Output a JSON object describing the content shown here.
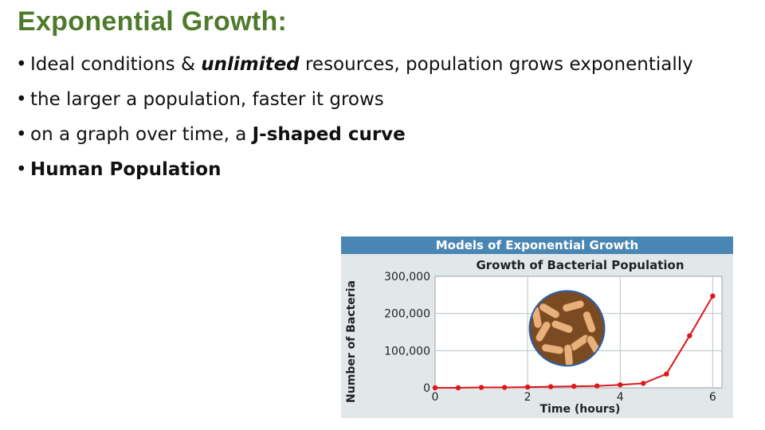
{
  "slide": {
    "title": "Exponential Growth:",
    "bullets": [
      {
        "parts": [
          {
            "text": "Ideal conditions & ",
            "style": "normal"
          },
          {
            "text": "unlimited",
            "style": "em"
          },
          {
            "text": " resources, population grows exponentially",
            "style": "normal"
          }
        ]
      },
      {
        "parts": [
          {
            "text": "the larger a population, faster it grows",
            "style": "normal"
          }
        ]
      },
      {
        "parts": [
          {
            "text": "on a graph over time, a ",
            "style": "normal"
          },
          {
            "text": "J-shaped curve",
            "style": "strong"
          }
        ]
      },
      {
        "parts": [
          {
            "text": "Human Population",
            "style": "strong"
          }
        ]
      }
    ]
  },
  "figure": {
    "header": "Models of Exponential Growth"
  },
  "colors": {
    "title": "#4f7a2c",
    "header_bg": "#4a86b4",
    "curve": "#e0161b",
    "plot_bg": "#ffffff",
    "grid": "#b9c3c6"
  },
  "chart_data": {
    "type": "line",
    "title": "Growth of Bacterial Population",
    "xlabel": "Time (hours)",
    "ylabel": "Number of Bacteria",
    "x_ticks": [
      0,
      2,
      4,
      6
    ],
    "y_ticks": [
      {
        "value": 0,
        "label": "0"
      },
      {
        "value": 100000,
        "label": "100,000"
      },
      {
        "value": 200000,
        "label": "200,000"
      },
      {
        "value": 300000,
        "label": "300,000"
      }
    ],
    "xlim": [
      0,
      6.2
    ],
    "ylim": [
      0,
      300000
    ],
    "grid": true,
    "series": [
      {
        "x": [
          0,
          0.5,
          1,
          1.5,
          2,
          2.5,
          3,
          3.5,
          4,
          4.5,
          5,
          5.5,
          6
        ],
        "values": [
          0,
          0,
          1000,
          1000,
          2000,
          3000,
          4000,
          5000,
          8000,
          12000,
          37000,
          140000,
          247000
        ]
      }
    ],
    "inset_image": "bacteria-micrograph"
  }
}
